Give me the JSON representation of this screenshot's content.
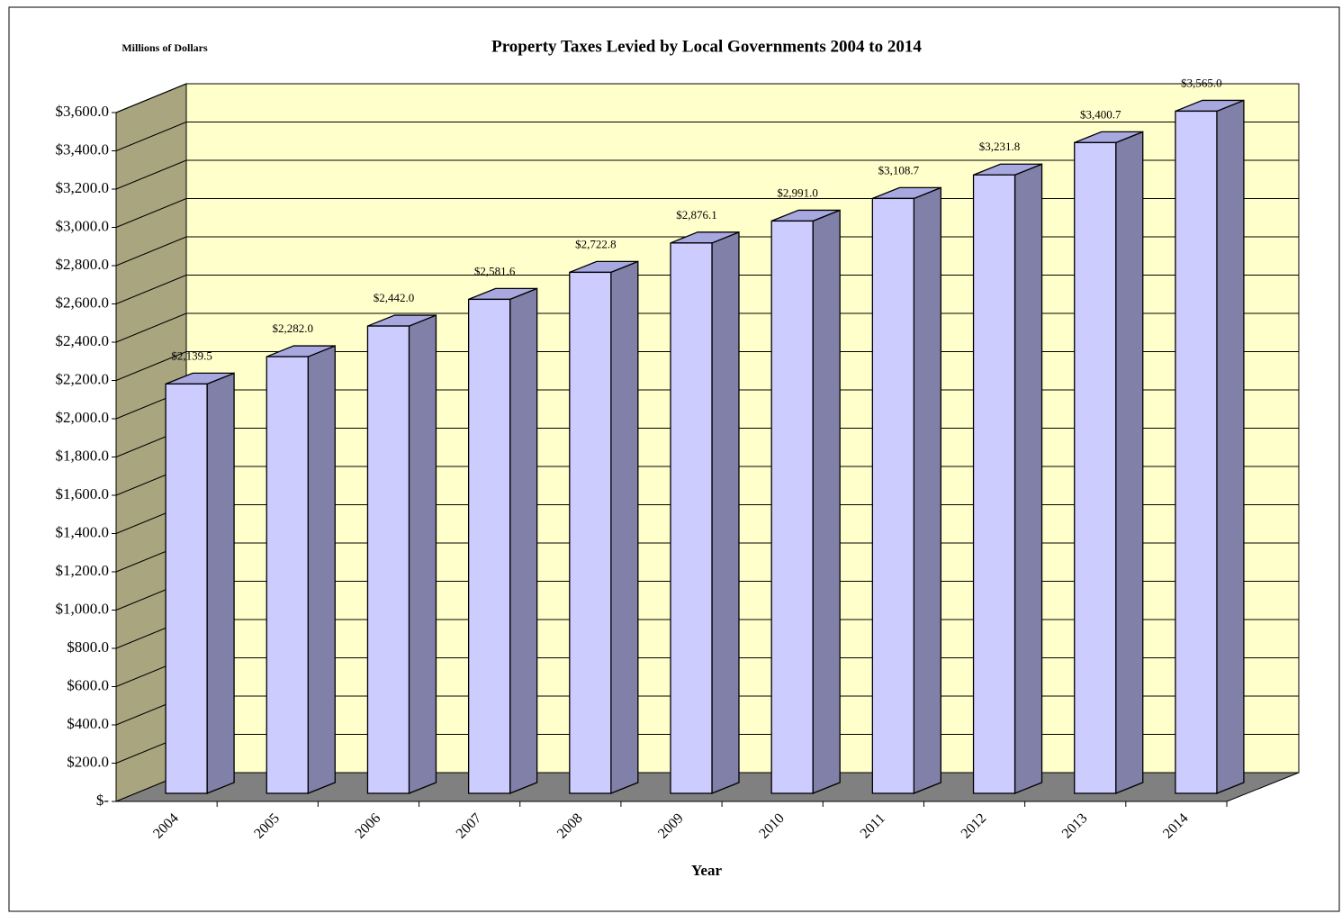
{
  "chart_data": {
    "type": "bar",
    "title": "Property Taxes Levied by Local Governments 2004 to 2014",
    "y_axis_label": "Millions of Dollars",
    "x_axis_label": "Year",
    "categories": [
      "2004",
      "2005",
      "2006",
      "2007",
      "2008",
      "2009",
      "2010",
      "2011",
      "2012",
      "2013",
      "2014"
    ],
    "values": [
      2139.5,
      2282.0,
      2442.0,
      2581.6,
      2722.8,
      2876.1,
      2991.0,
      3108.7,
      3231.8,
      3400.7,
      3565.0
    ],
    "value_labels": [
      "$2,139.5",
      "$2,282.0",
      "$2,442.0",
      "$2,581.6",
      "$2,722.8",
      "$2,876.1",
      "$2,991.0",
      "$3,108.7",
      "$3,231.8",
      "$3,400.7",
      "$3,565.0"
    ],
    "color": "#ccccff",
    "ylim": [
      0,
      3600
    ],
    "yticks": [
      {
        "value": 0,
        "label": "$-"
      },
      {
        "value": 200,
        "label": "$200.0"
      },
      {
        "value": 400,
        "label": "$400.0"
      },
      {
        "value": 600,
        "label": "$600.0"
      },
      {
        "value": 800,
        "label": "$800.0"
      },
      {
        "value": 1000,
        "label": "$1,000.0"
      },
      {
        "value": 1200,
        "label": "$1,200.0"
      },
      {
        "value": 1400,
        "label": "$1,400.0"
      },
      {
        "value": 1600,
        "label": "$1,600.0"
      },
      {
        "value": 1800,
        "label": "$1,800.0"
      },
      {
        "value": 2000,
        "label": "$2,000.0"
      },
      {
        "value": 2200,
        "label": "$2,200.0"
      },
      {
        "value": 2400,
        "label": "$2,400.0"
      },
      {
        "value": 2600,
        "label": "$2,600.0"
      },
      {
        "value": 2800,
        "label": "$2,800.0"
      },
      {
        "value": 3000,
        "label": "$3,000.0"
      },
      {
        "value": 3200,
        "label": "$3,200.0"
      },
      {
        "value": 3400,
        "label": "$3,400.0"
      },
      {
        "value": 3600,
        "label": "$3,600.0"
      }
    ],
    "grid": true
  }
}
